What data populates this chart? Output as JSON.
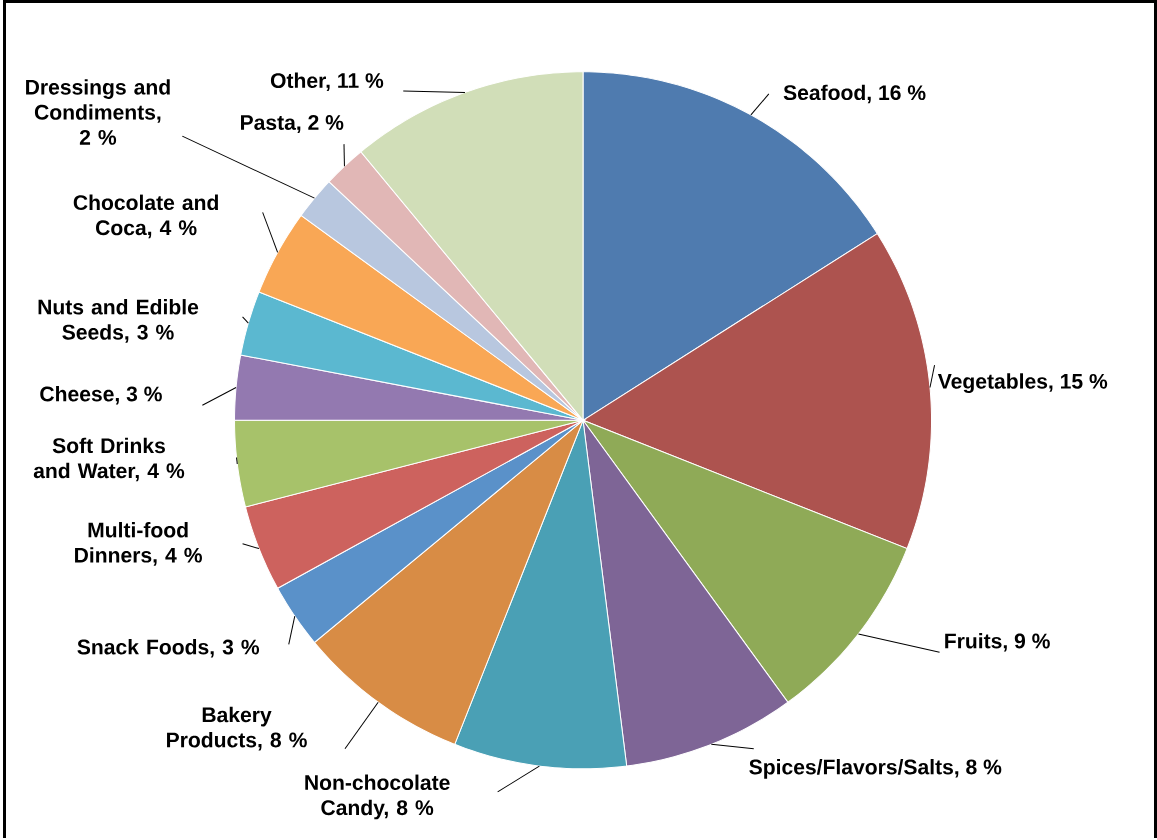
{
  "chart_data": {
    "type": "pie",
    "categories": [
      "Seafood, 16 %",
      "Vegetables, 15 %",
      "Fruits, 9 %",
      "Spices/Flavors/Salts, 8 %",
      "Non-chocolate Candy, 8 %",
      "Bakery Products, 8 %",
      "Snack Foods, 3 %",
      "Multi-food Dinners, 4 %",
      "Soft Drinks and Water, 4 %",
      "Cheese, 3 %",
      "Nuts and Edible Seeds, 3 %",
      "Chocolate and Coca, 4 %",
      "Dressings and Condiments, 2 %",
      "Pasta, 2 %",
      "Other, 11 %"
    ],
    "values": [
      16,
      15,
      9,
      8,
      8,
      8,
      3,
      4,
      4,
      3,
      3,
      4,
      2,
      2,
      11
    ],
    "colors": [
      "#4f7baf",
      "#ad534f",
      "#8faa57",
      "#7e6596",
      "#4aa0b5",
      "#d88c45",
      "#5a91c9",
      "#cd625e",
      "#a7c26a",
      "#9379b0",
      "#5bb8d0",
      "#f9a755",
      "#b8c7df",
      "#e1b7b6",
      "#d1deb8"
    ]
  }
}
